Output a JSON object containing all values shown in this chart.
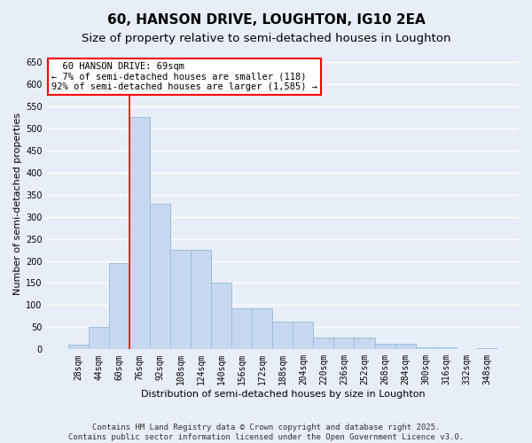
{
  "title": "60, HANSON DRIVE, LOUGHTON, IG10 2EA",
  "subtitle": "Size of property relative to semi-detached houses in Loughton",
  "xlabel": "Distribution of semi-detached houses by size in Loughton",
  "ylabel": "Number of semi-detached properties",
  "footer_line1": "Contains HM Land Registry data © Crown copyright and database right 2025.",
  "footer_line2": "Contains public sector information licensed under the Open Government Licence v3.0.",
  "annotation_line1": "  60 HANSON DRIVE: 69sqm",
  "annotation_line2": "← 7% of semi-detached houses are smaller (118)",
  "annotation_line3": "92% of semi-detached houses are larger (1,585) →",
  "bin_labels": [
    "28sqm",
    "44sqm",
    "60sqm",
    "76sqm",
    "92sqm",
    "108sqm",
    "124sqm",
    "140sqm",
    "156sqm",
    "172sqm",
    "188sqm",
    "204sqm",
    "220sqm",
    "236sqm",
    "252sqm",
    "268sqm",
    "284sqm",
    "300sqm",
    "316sqm",
    "332sqm",
    "348sqm"
  ],
  "bin_values": [
    10,
    50,
    195,
    525,
    330,
    225,
    225,
    150,
    93,
    93,
    63,
    63,
    27,
    27,
    27,
    13,
    13,
    5,
    5,
    1,
    3
  ],
  "bar_color": "#c5d8ef",
  "bar_edge_color": "#9fbfda",
  "red_line_x": 2.5,
  "ylim": [
    0,
    660
  ],
  "yticks": [
    0,
    50,
    100,
    150,
    200,
    250,
    300,
    350,
    400,
    450,
    500,
    550,
    600,
    650
  ],
  "background_color": "#e8eef8",
  "grid_color": "#ffffff",
  "title_fontsize": 11,
  "subtitle_fontsize": 9.5,
  "axis_label_fontsize": 8,
  "tick_fontsize": 7,
  "annotation_fontsize": 7.5,
  "footer_fontsize": 6.5
}
